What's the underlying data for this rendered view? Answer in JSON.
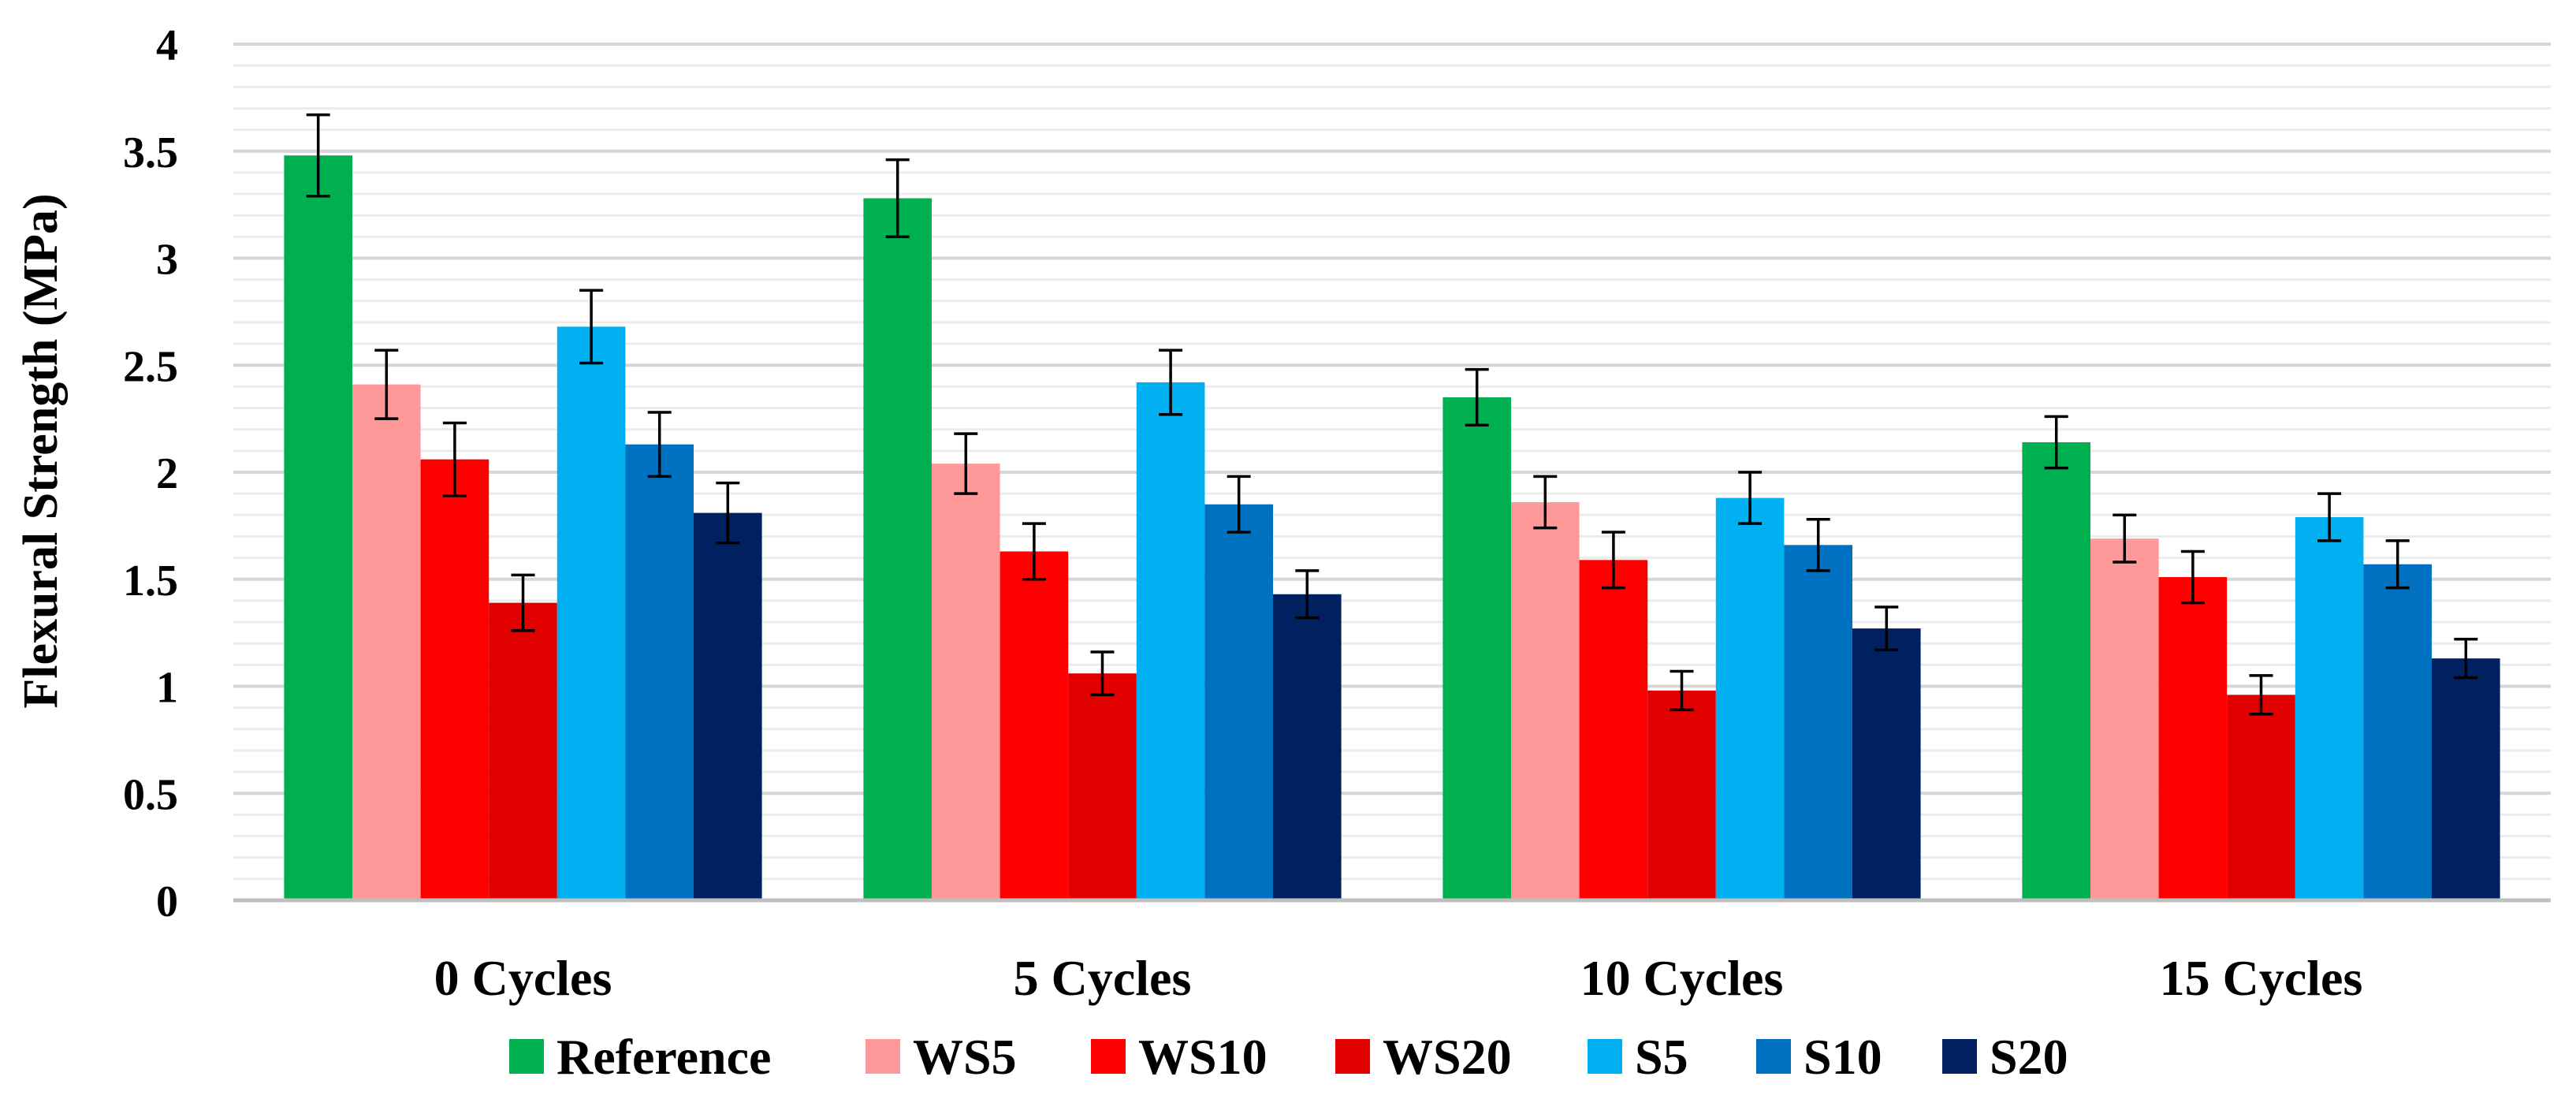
{
  "chart_data": {
    "type": "bar",
    "title": "",
    "xlabel": "",
    "ylabel": "Flexural Strength (MPa)",
    "ylim": [
      0,
      4
    ],
    "yticks": [
      "0",
      "0.5",
      "1",
      "1.5",
      "2",
      "2.5",
      "3",
      "3.5",
      "4"
    ],
    "grid": true,
    "legend": "bottom",
    "categories": [
      "0 Cycles",
      "5 Cycles",
      "10 Cycles",
      "15 Cycles"
    ],
    "series": [
      {
        "name": "Reference",
        "color": "#00b050",
        "values": [
          3.48,
          3.28,
          2.35,
          2.14
        ],
        "errors": [
          0.19,
          0.18,
          0.13,
          0.12
        ]
      },
      {
        "name": "WS5",
        "color": "#ff9999",
        "values": [
          2.41,
          2.04,
          1.86,
          1.69
        ],
        "errors": [
          0.16,
          0.14,
          0.12,
          0.11
        ]
      },
      {
        "name": "WS10",
        "color": "#ff0000",
        "values": [
          2.06,
          1.63,
          1.59,
          1.51
        ],
        "errors": [
          0.17,
          0.13,
          0.13,
          0.12
        ]
      },
      {
        "name": "WS20",
        "color": "#e00000",
        "values": [
          1.39,
          1.06,
          0.98,
          0.96
        ],
        "errors": [
          0.13,
          0.1,
          0.09,
          0.09
        ]
      },
      {
        "name": "S5",
        "color": "#00b0f0",
        "values": [
          2.68,
          2.42,
          1.88,
          1.79
        ],
        "errors": [
          0.17,
          0.15,
          0.12,
          0.11
        ]
      },
      {
        "name": "S10",
        "color": "#0070c0",
        "values": [
          2.13,
          1.85,
          1.66,
          1.57
        ],
        "errors": [
          0.15,
          0.13,
          0.12,
          0.11
        ]
      },
      {
        "name": "S20",
        "color": "#002060",
        "values": [
          1.81,
          1.43,
          1.27,
          1.13
        ],
        "errors": [
          0.14,
          0.11,
          0.1,
          0.09
        ]
      }
    ]
  }
}
